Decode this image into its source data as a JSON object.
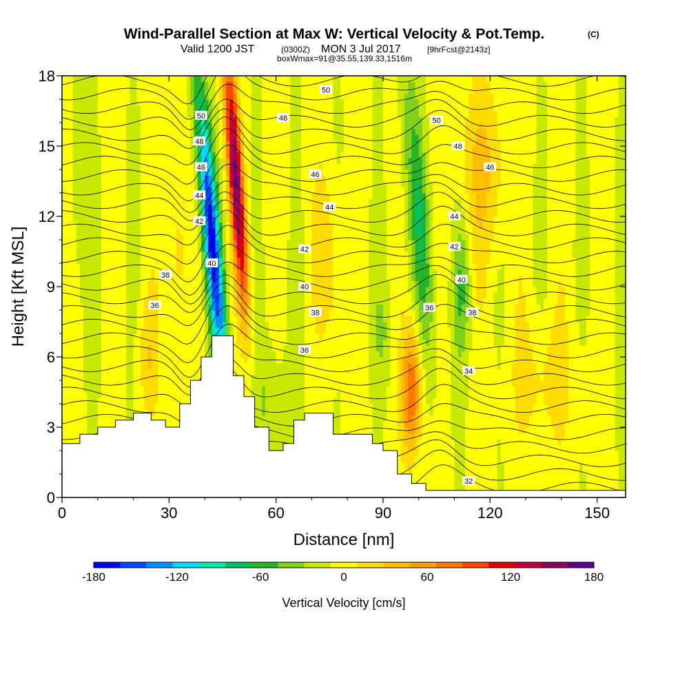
{
  "title": "Wind-Parallel Section at Max W: Vertical Velocity & Pot.Temp.",
  "title_mark": "(C)",
  "subtitle_a": "Valid 1200 JST",
  "subtitle_b": "(0300Z)",
  "subtitle_c": "MON 3 Jul 2017",
  "subtitle_d": "[9hrFcst@2143z]",
  "subtitle_e": "boxWmax=91@35.55,139.33,1516m",
  "chart_data": {
    "type": "heatmap",
    "xlabel": "Distance [nm]",
    "ylabel": "Height [Kft MSL]",
    "xlim": [
      0,
      158
    ],
    "ylim": [
      0,
      18
    ],
    "x_ticks": [
      0,
      30,
      60,
      90,
      120,
      150
    ],
    "y_ticks": [
      0,
      3,
      6,
      9,
      12,
      15,
      18
    ],
    "colorbar": {
      "label": "Vertical Velocity [cm/s]",
      "tick_values": [
        -180,
        -120,
        -60,
        0,
        60,
        120,
        180
      ],
      "colors": [
        "#0000ff",
        "#0048ff",
        "#0090ff",
        "#00d8ff",
        "#00e8b0",
        "#00c060",
        "#28b428",
        "#80d020",
        "#c8e800",
        "#ffff00",
        "#ffdc00",
        "#ffbe00",
        "#ffa000",
        "#ff7800",
        "#ff4600",
        "#e00000",
        "#c00040",
        "#900060",
        "#600090"
      ]
    },
    "terrain_profile": [
      [
        0,
        2.3
      ],
      [
        5,
        2.7
      ],
      [
        10,
        3.0
      ],
      [
        15,
        3.3
      ],
      [
        20,
        3.6
      ],
      [
        25,
        3.3
      ],
      [
        29,
        3.0
      ],
      [
        33,
        4.0
      ],
      [
        36,
        5.0
      ],
      [
        39,
        6.0
      ],
      [
        42,
        6.9
      ],
      [
        45,
        6.9
      ],
      [
        48,
        5.2
      ],
      [
        51,
        4.3
      ],
      [
        54,
        3.0
      ],
      [
        58,
        2.0
      ],
      [
        62,
        2.3
      ],
      [
        65,
        3.3
      ],
      [
        68,
        3.6
      ],
      [
        72,
        3.6
      ],
      [
        76,
        2.7
      ],
      [
        82,
        2.7
      ],
      [
        87,
        2.3
      ],
      [
        90,
        2.0
      ],
      [
        94,
        1.0
      ],
      [
        98,
        0.6
      ],
      [
        102,
        0.3
      ],
      [
        158,
        0.3
      ]
    ],
    "w_features": [
      {
        "x": 42,
        "z": 11,
        "w": -160
      },
      {
        "x": 48,
        "z": 14,
        "w": 170
      },
      {
        "x": 98,
        "z": 4.5,
        "w": 95
      },
      {
        "x": 104,
        "z": 12,
        "w": -60
      },
      {
        "x": 112,
        "z": 9,
        "w": -80
      }
    ],
    "theta_contour_labels": [
      {
        "v": "50",
        "x": 39,
        "z": 16.3
      },
      {
        "v": "48",
        "x": 38.5,
        "z": 15.2
      },
      {
        "v": "46",
        "x": 39,
        "z": 14.1
      },
      {
        "v": "44",
        "x": 38.5,
        "z": 12.9
      },
      {
        "v": "42",
        "x": 38.5,
        "z": 11.8
      },
      {
        "v": "40",
        "x": 42,
        "z": 10.0
      },
      {
        "v": "38",
        "x": 29,
        "z": 9.5
      },
      {
        "v": "36",
        "x": 26,
        "z": 8.2
      },
      {
        "v": "50",
        "x": 74,
        "z": 17.4
      },
      {
        "v": "48",
        "x": 62,
        "z": 16.2
      },
      {
        "v": "46",
        "x": 71,
        "z": 13.8
      },
      {
        "v": "44",
        "x": 75,
        "z": 12.4
      },
      {
        "v": "42",
        "x": 68,
        "z": 10.6
      },
      {
        "v": "40",
        "x": 68,
        "z": 9.0
      },
      {
        "v": "38",
        "x": 71,
        "z": 7.9
      },
      {
        "v": "36",
        "x": 68,
        "z": 6.3
      },
      {
        "v": "50",
        "x": 105,
        "z": 16.1
      },
      {
        "v": "48",
        "x": 111,
        "z": 15.0
      },
      {
        "v": "46",
        "x": 120,
        "z": 14.1
      },
      {
        "v": "44",
        "x": 110,
        "z": 12.0
      },
      {
        "v": "42",
        "x": 110,
        "z": 10.7
      },
      {
        "v": "40",
        "x": 112,
        "z": 9.3
      },
      {
        "v": "38",
        "x": 115,
        "z": 7.9
      },
      {
        "v": "36",
        "x": 103,
        "z": 8.1
      },
      {
        "v": "34",
        "x": 114,
        "z": 5.4
      },
      {
        "v": "32",
        "x": 114,
        "z": 0.7
      }
    ]
  }
}
